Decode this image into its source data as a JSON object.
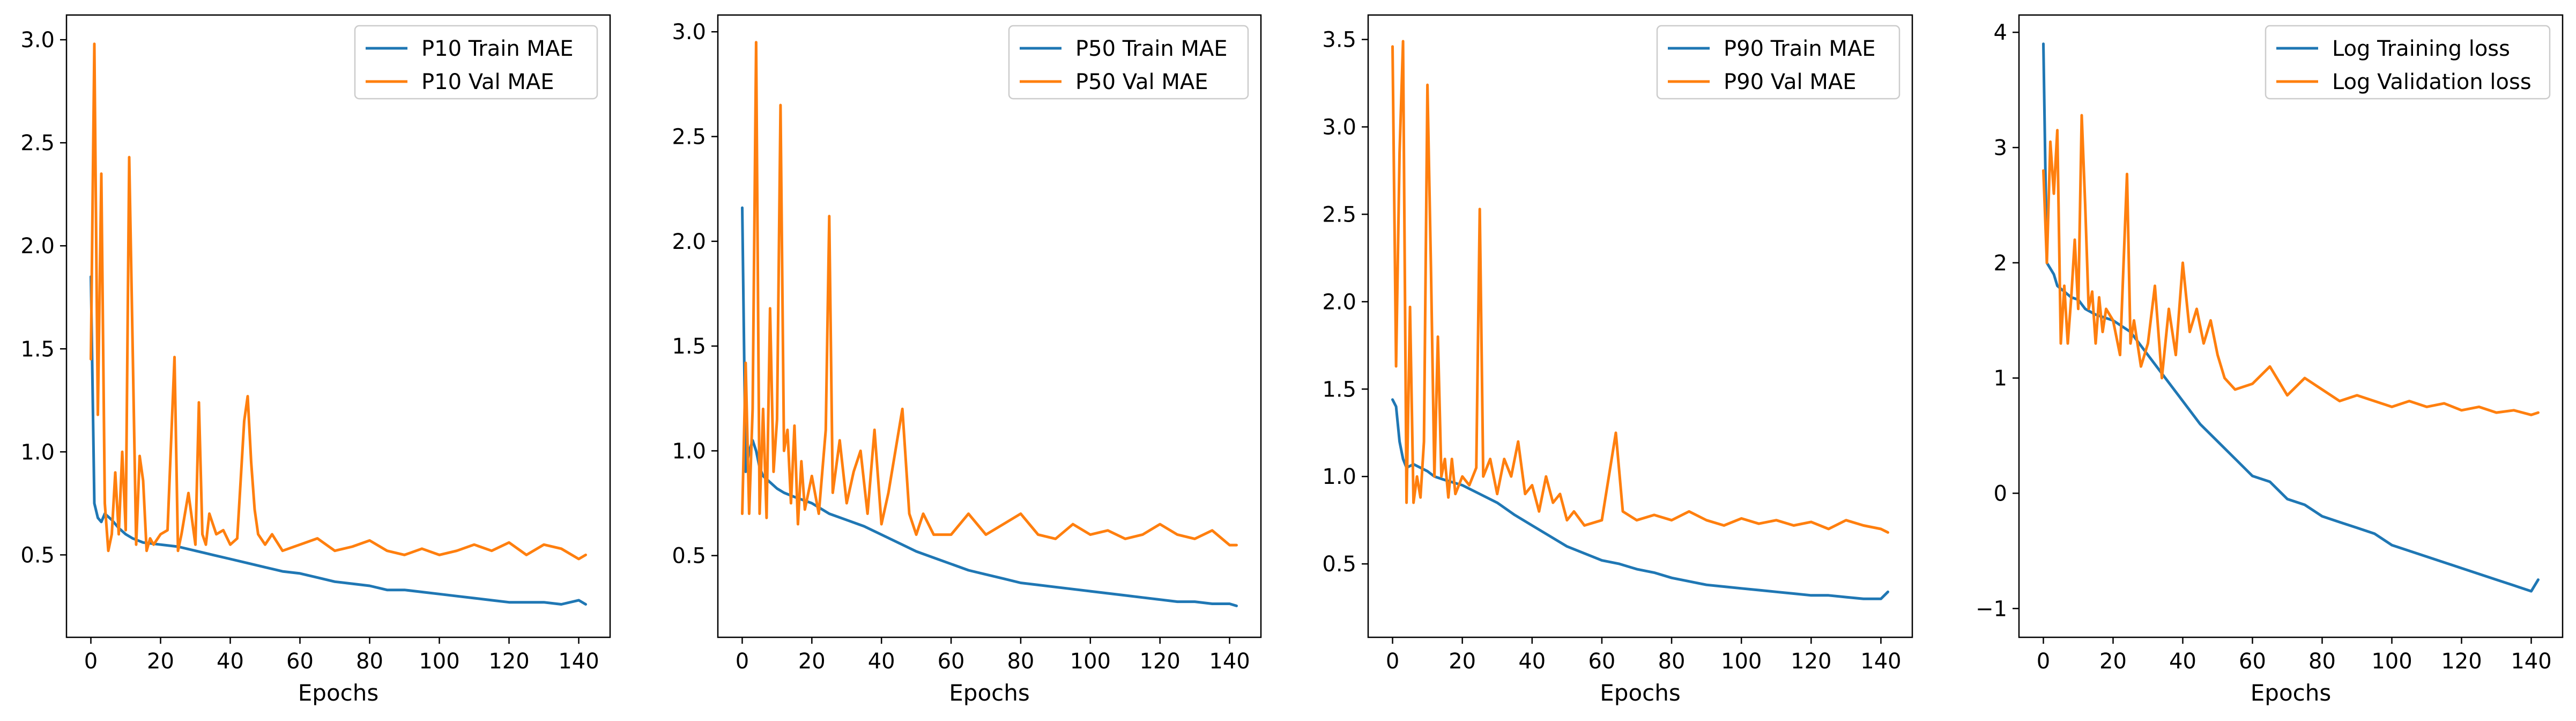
{
  "chart_data": [
    {
      "type": "line",
      "xlabel": "Epochs",
      "ylabel": "",
      "xlim": [
        -7,
        149
      ],
      "ylim": [
        0.1,
        3.12
      ],
      "xticks": [
        0,
        20,
        40,
        60,
        80,
        100,
        120,
        140
      ],
      "yticks": [
        0.5,
        1.0,
        1.5,
        2.0,
        2.5,
        3.0
      ],
      "ytick_labels": [
        "0.5",
        "1.0",
        "1.5",
        "2.0",
        "2.5",
        "3.0"
      ],
      "grid": false,
      "legend_position": "top-right",
      "series": [
        {
          "name": "P10 Train MAE",
          "color": "#1f77b4",
          "x": [
            0,
            1,
            2,
            3,
            4,
            6,
            8,
            10,
            12,
            15,
            20,
            25,
            30,
            35,
            40,
            45,
            50,
            55,
            60,
            65,
            70,
            75,
            80,
            85,
            90,
            95,
            100,
            105,
            110,
            115,
            120,
            125,
            130,
            135,
            140,
            142
          ],
          "y": [
            1.85,
            0.75,
            0.68,
            0.66,
            0.7,
            0.67,
            0.63,
            0.6,
            0.58,
            0.56,
            0.55,
            0.54,
            0.52,
            0.5,
            0.48,
            0.46,
            0.44,
            0.42,
            0.41,
            0.39,
            0.37,
            0.36,
            0.35,
            0.33,
            0.33,
            0.32,
            0.31,
            0.3,
            0.29,
            0.28,
            0.27,
            0.27,
            0.27,
            0.26,
            0.28,
            0.26
          ]
        },
        {
          "name": "P10 Val MAE",
          "color": "#ff7f0e",
          "x": [
            0,
            1,
            2,
            3,
            4,
            5,
            6,
            7,
            8,
            9,
            10,
            11,
            12,
            13,
            14,
            15,
            16,
            17,
            18,
            20,
            22,
            24,
            25,
            26,
            28,
            30,
            31,
            32,
            33,
            34,
            36,
            38,
            40,
            42,
            44,
            45,
            46,
            47,
            48,
            50,
            52,
            55,
            60,
            65,
            70,
            75,
            80,
            85,
            90,
            95,
            100,
            105,
            110,
            115,
            120,
            125,
            130,
            135,
            140,
            142
          ],
          "y": [
            1.45,
            2.98,
            1.18,
            2.35,
            0.75,
            0.52,
            0.6,
            0.9,
            0.6,
            1.0,
            0.62,
            2.43,
            1.5,
            0.55,
            0.98,
            0.86,
            0.52,
            0.58,
            0.55,
            0.6,
            0.62,
            1.46,
            0.52,
            0.6,
            0.8,
            0.55,
            1.24,
            0.6,
            0.55,
            0.7,
            0.6,
            0.62,
            0.55,
            0.58,
            1.15,
            1.27,
            0.95,
            0.72,
            0.6,
            0.55,
            0.6,
            0.52,
            0.55,
            0.58,
            0.52,
            0.54,
            0.57,
            0.52,
            0.5,
            0.53,
            0.5,
            0.52,
            0.55,
            0.52,
            0.56,
            0.5,
            0.55,
            0.53,
            0.48,
            0.5
          ]
        }
      ]
    },
    {
      "type": "line",
      "xlabel": "Epochs",
      "ylabel": "",
      "xlim": [
        -7,
        149
      ],
      "ylim": [
        0.11,
        3.08
      ],
      "xticks": [
        0,
        20,
        40,
        60,
        80,
        100,
        120,
        140
      ],
      "yticks": [
        0.5,
        1.0,
        1.5,
        2.0,
        2.5,
        3.0
      ],
      "ytick_labels": [
        "0.5",
        "1.0",
        "1.5",
        "2.0",
        "2.5",
        "3.0"
      ],
      "grid": false,
      "legend_position": "top-right",
      "series": [
        {
          "name": "P50 Train MAE",
          "color": "#1f77b4",
          "x": [
            0,
            1,
            2,
            3,
            4,
            5,
            6,
            8,
            10,
            12,
            15,
            20,
            25,
            30,
            35,
            40,
            45,
            50,
            55,
            60,
            65,
            70,
            75,
            80,
            85,
            90,
            95,
            100,
            105,
            110,
            115,
            120,
            125,
            130,
            135,
            140,
            142
          ],
          "y": [
            2.16,
            0.9,
            1.0,
            1.05,
            1.0,
            0.92,
            0.88,
            0.85,
            0.82,
            0.8,
            0.78,
            0.75,
            0.7,
            0.67,
            0.64,
            0.6,
            0.56,
            0.52,
            0.49,
            0.46,
            0.43,
            0.41,
            0.39,
            0.37,
            0.36,
            0.35,
            0.34,
            0.33,
            0.32,
            0.31,
            0.3,
            0.29,
            0.28,
            0.28,
            0.27,
            0.27,
            0.26
          ]
        },
        {
          "name": "P50 Val MAE",
          "color": "#ff7f0e",
          "x": [
            0,
            1,
            2,
            3,
            4,
            5,
            6,
            7,
            8,
            9,
            10,
            11,
            12,
            13,
            14,
            15,
            16,
            17,
            18,
            20,
            22,
            24,
            25,
            26,
            28,
            30,
            32,
            34,
            36,
            38,
            40,
            42,
            44,
            46,
            48,
            50,
            52,
            55,
            60,
            65,
            70,
            75,
            80,
            85,
            90,
            95,
            100,
            105,
            110,
            115,
            120,
            125,
            130,
            135,
            140,
            142
          ],
          "y": [
            0.7,
            1.42,
            0.7,
            1.2,
            2.95,
            0.7,
            1.2,
            0.68,
            1.68,
            0.9,
            1.15,
            2.65,
            1.0,
            1.1,
            0.75,
            1.12,
            0.65,
            0.95,
            0.72,
            0.88,
            0.7,
            1.1,
            2.12,
            0.8,
            1.05,
            0.75,
            0.9,
            1.0,
            0.7,
            1.1,
            0.65,
            0.8,
            1.0,
            1.2,
            0.7,
            0.6,
            0.7,
            0.6,
            0.6,
            0.7,
            0.6,
            0.65,
            0.7,
            0.6,
            0.58,
            0.65,
            0.6,
            0.62,
            0.58,
            0.6,
            0.65,
            0.6,
            0.58,
            0.62,
            0.55,
            0.55
          ]
        }
      ]
    },
    {
      "type": "line",
      "xlabel": "Epochs",
      "ylabel": "",
      "xlim": [
        -7,
        149
      ],
      "ylim": [
        0.08,
        3.64
      ],
      "xticks": [
        0,
        20,
        40,
        60,
        80,
        100,
        120,
        140
      ],
      "yticks": [
        0.5,
        1.0,
        1.5,
        2.0,
        2.5,
        3.0,
        3.5
      ],
      "ytick_labels": [
        "0.5",
        "1.0",
        "1.5",
        "2.0",
        "2.5",
        "3.0",
        "3.5"
      ],
      "grid": false,
      "legend_position": "top-right",
      "series": [
        {
          "name": "P90 Train MAE",
          "color": "#1f77b4",
          "x": [
            0,
            1,
            2,
            3,
            4,
            6,
            8,
            10,
            12,
            15,
            20,
            25,
            30,
            35,
            40,
            45,
            50,
            55,
            60,
            65,
            70,
            75,
            80,
            85,
            90,
            95,
            100,
            105,
            110,
            115,
            120,
            125,
            130,
            135,
            140,
            142
          ],
          "y": [
            1.44,
            1.4,
            1.2,
            1.1,
            1.05,
            1.07,
            1.05,
            1.03,
            1.0,
            0.98,
            0.95,
            0.9,
            0.85,
            0.78,
            0.72,
            0.66,
            0.6,
            0.56,
            0.52,
            0.5,
            0.47,
            0.45,
            0.42,
            0.4,
            0.38,
            0.37,
            0.36,
            0.35,
            0.34,
            0.33,
            0.32,
            0.32,
            0.31,
            0.3,
            0.3,
            0.34
          ]
        },
        {
          "name": "P90 Val MAE",
          "color": "#ff7f0e",
          "x": [
            0,
            1,
            2,
            3,
            4,
            5,
            6,
            7,
            8,
            9,
            10,
            11,
            12,
            13,
            14,
            15,
            16,
            17,
            18,
            20,
            22,
            24,
            25,
            26,
            28,
            30,
            32,
            34,
            36,
            38,
            40,
            42,
            44,
            46,
            48,
            50,
            52,
            55,
            60,
            64,
            66,
            70,
            75,
            80,
            85,
            90,
            95,
            100,
            105,
            110,
            115,
            120,
            125,
            130,
            135,
            140,
            142
          ],
          "y": [
            3.46,
            1.63,
            2.85,
            3.49,
            0.85,
            1.97,
            0.85,
            1.0,
            0.88,
            1.2,
            3.24,
            2.2,
            1.0,
            1.8,
            1.0,
            1.1,
            0.88,
            1.1,
            0.9,
            1.0,
            0.95,
            1.05,
            2.53,
            1.0,
            1.1,
            0.9,
            1.1,
            1.0,
            1.2,
            0.9,
            0.95,
            0.8,
            1.0,
            0.85,
            0.9,
            0.75,
            0.8,
            0.72,
            0.75,
            1.25,
            0.8,
            0.75,
            0.78,
            0.75,
            0.8,
            0.75,
            0.72,
            0.76,
            0.73,
            0.75,
            0.72,
            0.74,
            0.7,
            0.75,
            0.72,
            0.7,
            0.68
          ]
        }
      ]
    },
    {
      "type": "line",
      "xlabel": "Epochs",
      "ylabel": "",
      "xlim": [
        -7,
        149
      ],
      "ylim": [
        -1.25,
        4.15
      ],
      "xticks": [
        0,
        20,
        40,
        60,
        80,
        100,
        120,
        140
      ],
      "yticks": [
        -1,
        0,
        1,
        2,
        3,
        4
      ],
      "ytick_labels": [
        "−1",
        "0",
        "1",
        "2",
        "3",
        "4"
      ],
      "grid": false,
      "legend_position": "top-right",
      "series": [
        {
          "name": "Log Training loss",
          "color": "#1f77b4",
          "x": [
            0,
            1,
            2,
            3,
            4,
            6,
            8,
            10,
            12,
            15,
            20,
            25,
            30,
            35,
            40,
            45,
            50,
            55,
            60,
            65,
            70,
            75,
            80,
            85,
            90,
            95,
            100,
            105,
            110,
            115,
            120,
            125,
            130,
            135,
            140,
            142
          ],
          "y": [
            3.9,
            2.0,
            1.95,
            1.9,
            1.8,
            1.75,
            1.7,
            1.68,
            1.6,
            1.55,
            1.5,
            1.4,
            1.2,
            1.0,
            0.8,
            0.6,
            0.45,
            0.3,
            0.15,
            0.1,
            -0.05,
            -0.1,
            -0.2,
            -0.25,
            -0.3,
            -0.35,
            -0.45,
            -0.5,
            -0.55,
            -0.6,
            -0.65,
            -0.7,
            -0.75,
            -0.8,
            -0.85,
            -0.75
          ]
        },
        {
          "name": "Log Validation loss",
          "color": "#ff7f0e",
          "x": [
            0,
            1,
            2,
            3,
            4,
            5,
            6,
            7,
            8,
            9,
            10,
            11,
            12,
            13,
            14,
            15,
            16,
            17,
            18,
            20,
            22,
            24,
            25,
            26,
            28,
            30,
            32,
            34,
            36,
            38,
            40,
            42,
            44,
            46,
            48,
            50,
            52,
            55,
            60,
            65,
            70,
            75,
            80,
            85,
            90,
            95,
            100,
            105,
            110,
            115,
            120,
            125,
            130,
            135,
            140,
            142
          ],
          "y": [
            2.8,
            2.0,
            3.05,
            2.6,
            3.15,
            1.3,
            1.8,
            1.3,
            1.7,
            2.2,
            1.6,
            3.28,
            2.5,
            1.6,
            1.75,
            1.3,
            1.7,
            1.4,
            1.6,
            1.5,
            1.2,
            2.77,
            1.3,
            1.5,
            1.1,
            1.3,
            1.8,
            1.0,
            1.6,
            1.2,
            2.0,
            1.4,
            1.6,
            1.3,
            1.5,
            1.2,
            1.0,
            0.9,
            0.95,
            1.1,
            0.85,
            1.0,
            0.9,
            0.8,
            0.85,
            0.8,
            0.75,
            0.8,
            0.75,
            0.78,
            0.72,
            0.75,
            0.7,
            0.72,
            0.68,
            0.7
          ]
        }
      ]
    }
  ]
}
